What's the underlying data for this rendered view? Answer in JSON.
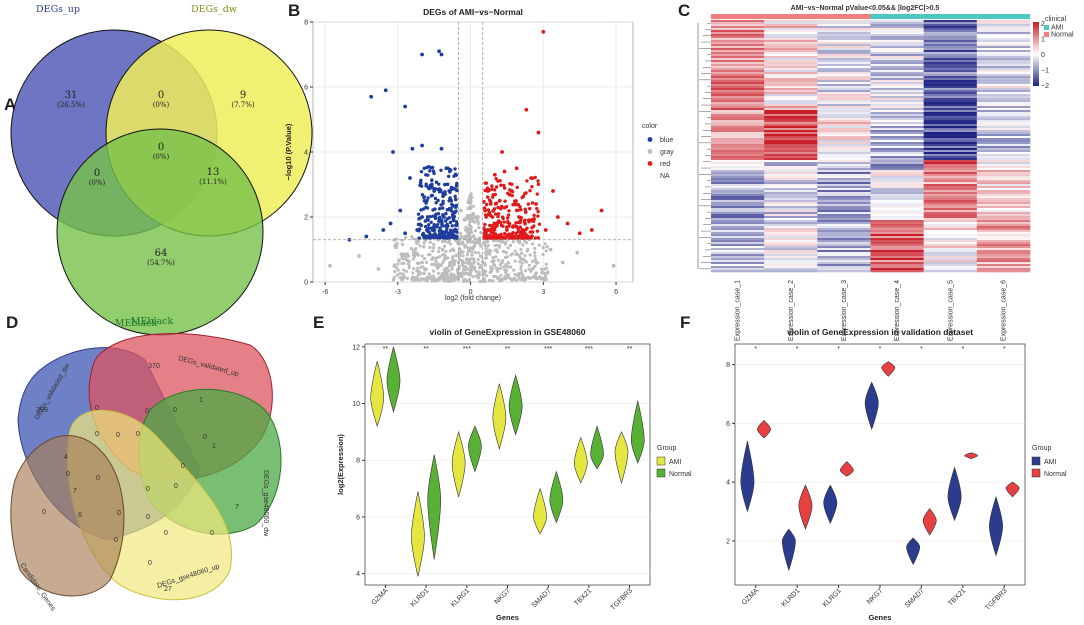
{
  "panels": {
    "A": {
      "label": "A",
      "sets": [
        {
          "name": "DEGs_up",
          "color": "#2b3a9a"
        },
        {
          "name": "DEGs_dw",
          "color": "#8a8a1a"
        },
        {
          "name": "MEblack",
          "color": "#1e7a2a"
        }
      ],
      "regions": [
        {
          "key": "up_only",
          "count": "31",
          "pct": "(26.5%)"
        },
        {
          "key": "dw_only",
          "count": "9",
          "pct": "(7.7%)"
        },
        {
          "key": "up_dw",
          "count": "0",
          "pct": "(0%)"
        },
        {
          "key": "up_me",
          "count": "0",
          "pct": "(0%)"
        },
        {
          "key": "all",
          "count": "0",
          "pct": "(0%)"
        },
        {
          "key": "dw_me",
          "count": "13",
          "pct": "(11.1%)"
        },
        {
          "key": "me_only",
          "count": "64",
          "pct": "(54.7%)"
        }
      ]
    },
    "B": {
      "label": "B",
      "legend_title": "color",
      "legend": [
        {
          "name": "blue",
          "color": "#1f3e9b"
        },
        {
          "name": "gray",
          "color": "#bdbdbd"
        },
        {
          "name": "red",
          "color": "#e0191b"
        },
        {
          "name": "NA",
          "color": ""
        }
      ]
    },
    "C": {
      "label": "C",
      "title": "AMI−vs−Normal pValue<0.05&& |log2FC|>0.5",
      "legend_values": [
        "2",
        "1",
        "0",
        "−1",
        "−2"
      ],
      "clinical_title": "clinical",
      "clinical_items": [
        {
          "name": "AMI",
          "color": "#4ec7c2"
        },
        {
          "name": "Normal",
          "color": "#f08080"
        }
      ],
      "clinical_marks": [
        "2",
        "0"
      ],
      "columns": [
        "Expression_case_1",
        "Expression_case_2",
        "Expression_case_3",
        "Expression_case_4",
        "Expression_case_5",
        "Expression_case_6"
      ]
    },
    "D": {
      "label": "D",
      "sets": [
        {
          "name": "MEblack"
        },
        {
          "name": "DEGs_validated_dw"
        },
        {
          "name": "DEGs_validated_up"
        },
        {
          "name": "DEGs_gse48060_dw"
        },
        {
          "name": "DEGs_gse48060_up"
        },
        {
          "name": "Candidate_Genes"
        }
      ],
      "counts": [
        "399",
        "370",
        "7",
        "27",
        "0",
        "4",
        "0",
        "0",
        "0",
        "0",
        "0",
        "1",
        "0",
        "1",
        "0",
        "0",
        "7",
        "6",
        "0",
        "0",
        "0",
        "0",
        "0",
        "0",
        "0",
        "0",
        "0",
        "0"
      ]
    }
  },
  "chart_data": [
    {
      "panel": "B",
      "type": "scatter",
      "title": "DEGs of AMI−vs−Normal",
      "xlabel": "log2 (fold change)",
      "ylabel": "−log10 (P.Value)",
      "xlim": [
        -6.5,
        6.7
      ],
      "ylim": [
        0,
        8
      ],
      "xticks": [
        -6,
        -3,
        0,
        3,
        6
      ],
      "yticks": [
        0,
        2,
        4,
        6,
        8
      ],
      "thresholds": {
        "log2fc": [
          -0.5,
          0.5
        ],
        "pvalue_line": 1.3
      },
      "series": [
        {
          "name": "blue",
          "points": [
            [
              -2.0,
              7.0
            ],
            [
              -1.3,
              7.1
            ],
            [
              -1.2,
              7.0
            ],
            [
              -3.5,
              5.9
            ],
            [
              -4.1,
              5.7
            ],
            [
              -2.7,
              5.4
            ],
            [
              -3.2,
              4.0
            ],
            [
              -2.4,
              4.1
            ],
            [
              -2.0,
              4.2
            ],
            [
              -1.2,
              4.1
            ],
            [
              -5.0,
              1.3
            ],
            [
              -4.3,
              1.4
            ],
            [
              -3.6,
              1.6
            ],
            [
              -2.9,
              2.2
            ],
            [
              -2.5,
              3.2
            ],
            [
              -3.3,
              1.8
            ],
            [
              -1.9,
              2.5
            ],
            [
              -1.6,
              3.0
            ],
            [
              -1.0,
              3.5
            ],
            [
              -0.8,
              2.5
            ],
            [
              -1.1,
              2.0
            ],
            [
              -1.4,
              1.7
            ],
            [
              -0.9,
              1.5
            ],
            [
              -2.2,
              1.6
            ],
            [
              -0.7,
              1.9
            ],
            [
              -1.5,
              2.8
            ],
            [
              -2.0,
              2.0
            ],
            [
              -0.6,
              1.6
            ],
            [
              -2.7,
              1.5
            ],
            [
              -1.8,
              1.6
            ]
          ]
        },
        {
          "name": "red",
          "points": [
            [
              3.0,
              7.7
            ],
            [
              2.3,
              5.3
            ],
            [
              2.8,
              4.6
            ],
            [
              1.3,
              4.0
            ],
            [
              1.9,
              3.5
            ],
            [
              3.4,
              2.8
            ],
            [
              4.0,
              1.8
            ],
            [
              5.0,
              1.6
            ],
            [
              5.4,
              2.2
            ],
            [
              0.6,
              1.5
            ],
            [
              0.9,
              2.0
            ],
            [
              1.2,
              2.5
            ],
            [
              1.5,
              1.6
            ],
            [
              2.0,
              2.0
            ],
            [
              2.5,
              3.2
            ],
            [
              0.7,
              2.8
            ],
            [
              1.1,
              1.8
            ],
            [
              1.7,
              2.8
            ],
            [
              2.2,
              1.5
            ],
            [
              0.8,
              1.6
            ],
            [
              3.1,
              1.6
            ],
            [
              1.4,
              3.4
            ],
            [
              0.6,
              2.2
            ],
            [
              2.7,
              2.4
            ],
            [
              1.9,
              1.7
            ],
            [
              4.5,
              1.5
            ],
            [
              0.9,
              1.4
            ],
            [
              2.4,
              1.9
            ],
            [
              1.0,
              3.3
            ],
            [
              3.6,
              2.0
            ]
          ]
        },
        {
          "name": "gray",
          "points": [
            [
              -5.8,
              0.5
            ],
            [
              5.9,
              0.5
            ],
            [
              -4.6,
              0.8
            ],
            [
              4.4,
              0.9
            ],
            [
              -3.1,
              1.1
            ],
            [
              3.3,
              1.0
            ],
            [
              -0.2,
              1.4
            ],
            [
              0.2,
              1.2
            ],
            [
              -2.0,
              0.6
            ],
            [
              2.1,
              0.7
            ],
            [
              -1.0,
              0.3
            ],
            [
              1.1,
              0.4
            ],
            [
              -0.4,
              2.2
            ],
            [
              0.3,
              2.0
            ],
            [
              -3.8,
              0.4
            ],
            [
              3.8,
              0.6
            ]
          ]
        }
      ],
      "legend_title": "color"
    },
    {
      "panel": "E",
      "type": "violin",
      "title": "violin of GeneExpression in GSE48060",
      "xlabel": "Genes",
      "ylabel": "log2(Expression)",
      "ylim": [
        3.6,
        12.1
      ],
      "yticks": [
        4,
        6,
        8,
        10,
        12
      ],
      "categories": [
        "GZMA",
        "KLRD1",
        "KLRG1",
        "NKG7",
        "SMAD7",
        "TBX21",
        "TGFBR3"
      ],
      "significance": [
        "**",
        "**",
        "***",
        "**",
        "***",
        "***",
        "**"
      ],
      "legend_title": "Group",
      "series": [
        {
          "name": "AMI",
          "color": "#e6e640",
          "ranges": [
            [
              9.2,
              11.5
            ],
            [
              3.9,
              6.9
            ],
            [
              6.7,
              9.0
            ],
            [
              8.4,
              10.7
            ],
            [
              5.4,
              7.0
            ],
            [
              7.2,
              8.8
            ],
            [
              7.2,
              9.0
            ]
          ],
          "peaks": [
            10.2,
            5.3,
            7.9,
            9.5,
            6.0,
            7.9,
            8.3
          ]
        },
        {
          "name": "Normal",
          "color": "#58b034",
          "ranges": [
            [
              9.7,
              12.0
            ],
            [
              4.5,
              8.2
            ],
            [
              7.6,
              9.2
            ],
            [
              8.9,
              11.0
            ],
            [
              5.8,
              7.6
            ],
            [
              7.7,
              9.2
            ],
            [
              7.9,
              10.1
            ]
          ],
          "peaks": [
            10.8,
            6.6,
            8.5,
            9.9,
            6.6,
            8.2,
            8.7
          ]
        }
      ]
    },
    {
      "panel": "F",
      "type": "violin",
      "title": "violin of GeneExpression in validation dataset",
      "xlabel": "Genes",
      "ylabel": "",
      "ylim": [
        0.5,
        8.7
      ],
      "yticks": [
        2,
        4,
        6,
        8
      ],
      "categories": [
        "GZMA",
        "KLRD1",
        "KLRG1",
        "NKG7",
        "SMAD7",
        "TBX21",
        "TGFBR3"
      ],
      "significance": [
        "*",
        "*",
        "*",
        "*",
        "*",
        "*",
        "*"
      ],
      "legend_title": "Group",
      "series": [
        {
          "name": "AMI",
          "color": "#2b3c8e",
          "ranges": [
            [
              3.0,
              5.4
            ],
            [
              1.0,
              2.4
            ],
            [
              2.6,
              3.9
            ],
            [
              5.8,
              7.4
            ],
            [
              1.2,
              2.1
            ],
            [
              2.7,
              4.5
            ],
            [
              1.5,
              3.5
            ]
          ],
          "peaks": [
            4.0,
            2.0,
            3.3,
            6.7,
            1.8,
            3.5,
            2.5
          ]
        },
        {
          "name": "Normal",
          "color": "#e64040",
          "ranges": [
            [
              5.5,
              6.1
            ],
            [
              2.4,
              3.9
            ],
            [
              4.2,
              4.7
            ],
            [
              7.6,
              8.1
            ],
            [
              2.2,
              3.1
            ],
            [
              4.8,
              5.0
            ],
            [
              3.5,
              4.0
            ]
          ],
          "peaks": [
            5.8,
            3.2,
            4.4,
            7.9,
            2.7,
            4.9,
            3.8
          ]
        }
      ]
    }
  ]
}
